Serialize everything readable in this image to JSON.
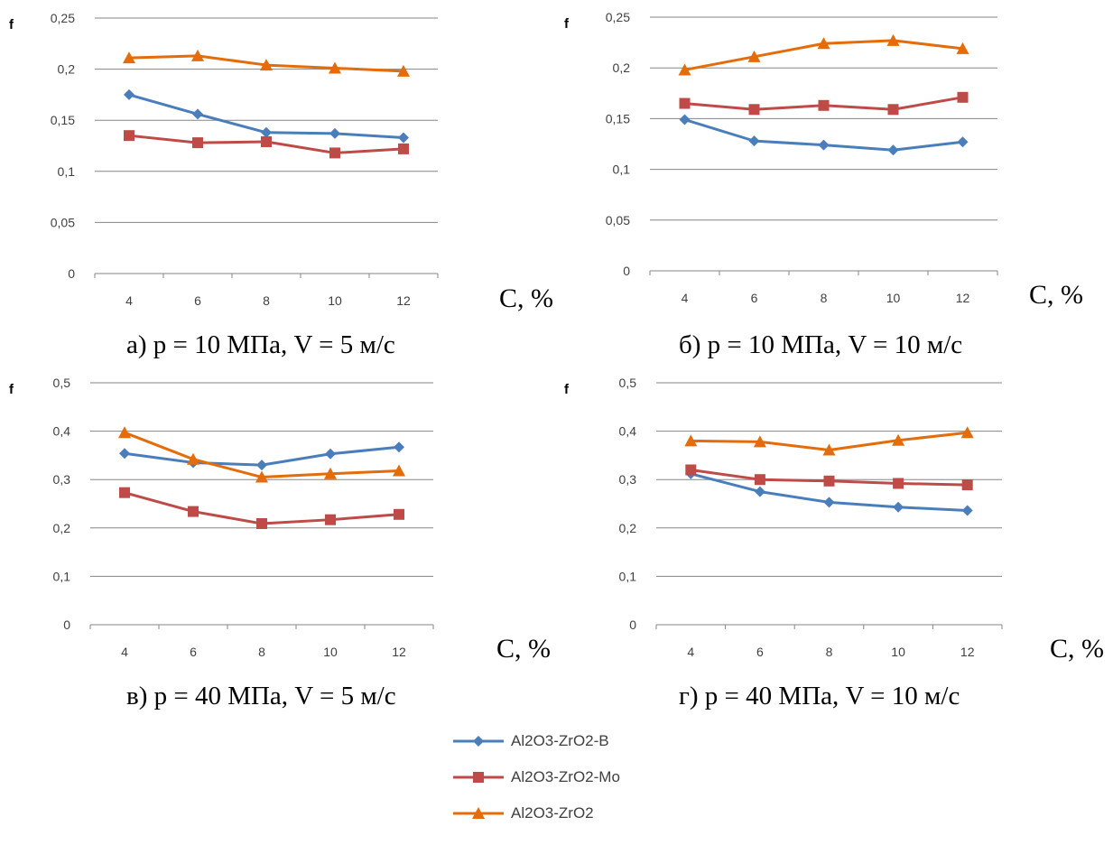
{
  "series_styles": [
    {
      "color": "#4a7ebb",
      "marker": "diamond"
    },
    {
      "color": "#be4b48",
      "marker": "square"
    },
    {
      "color": "#e46c0a",
      "marker": "triangle"
    }
  ],
  "legend": {
    "items": [
      "Al2O3-ZrO2-B",
      "Al2O3-ZrO2-Mo",
      "Al2O3-ZrO2"
    ]
  },
  "chart_data": [
    {
      "type": "line",
      "title": "а) p = 10 МПа, V = 5 м/с",
      "ylabel": "f",
      "xlabel": "C, %",
      "categories": [
        "4",
        "6",
        "8",
        "10",
        "12"
      ],
      "yticks": [
        "0",
        "0,05",
        "0,1",
        "0,15",
        "0,2",
        "0,25"
      ],
      "ylim": [
        0,
        0.25
      ],
      "grid": true,
      "series": [
        {
          "name": "Al2O3-ZrO2-B",
          "values": [
            0.175,
            0.156,
            0.138,
            0.137,
            0.133
          ]
        },
        {
          "name": "Al2O3-ZrO2-Mo",
          "values": [
            0.135,
            0.128,
            0.129,
            0.118,
            0.122
          ]
        },
        {
          "name": "Al2O3-ZrO2",
          "values": [
            0.211,
            0.213,
            0.204,
            0.201,
            0.198
          ]
        }
      ]
    },
    {
      "type": "line",
      "title": "б) p = 10 МПа, V = 10 м/с",
      "ylabel": "f",
      "xlabel": "C, %",
      "categories": [
        "4",
        "6",
        "8",
        "10",
        "12"
      ],
      "yticks": [
        "0",
        "0,05",
        "0,1",
        "0,15",
        "0,2",
        "0,25"
      ],
      "ylim": [
        0,
        0.25
      ],
      "grid": true,
      "series": [
        {
          "name": "Al2O3-ZrO2-B",
          "values": [
            0.149,
            0.128,
            0.124,
            0.119,
            0.127
          ]
        },
        {
          "name": "Al2O3-ZrO2-Mo",
          "values": [
            0.165,
            0.159,
            0.163,
            0.159,
            0.171
          ]
        },
        {
          "name": "Al2O3-ZrO2",
          "values": [
            0.198,
            0.211,
            0.224,
            0.227,
            0.219
          ]
        }
      ]
    },
    {
      "type": "line",
      "title": "в) p = 40 МПа, V = 5 м/с",
      "ylabel": "f",
      "xlabel": "C, %",
      "categories": [
        "4",
        "6",
        "8",
        "10",
        "12"
      ],
      "yticks": [
        "0",
        "0,1",
        "0,2",
        "0,3",
        "0,4",
        "0,5"
      ],
      "ylim": [
        0,
        0.5
      ],
      "grid": true,
      "series": [
        {
          "name": "Al2O3-ZrO2-B",
          "values": [
            0.354,
            0.335,
            0.33,
            0.353,
            0.367
          ]
        },
        {
          "name": "Al2O3-ZrO2-Mo",
          "values": [
            0.273,
            0.234,
            0.209,
            0.217,
            0.228
          ]
        },
        {
          "name": "Al2O3-ZrO2",
          "values": [
            0.397,
            0.342,
            0.305,
            0.312,
            0.318
          ]
        }
      ]
    },
    {
      "type": "line",
      "title": "г) p = 40 МПа, V = 10 м/с",
      "ylabel": "f",
      "xlabel": "C, %",
      "categories": [
        "4",
        "6",
        "8",
        "10",
        "12"
      ],
      "yticks": [
        "0",
        "0,1",
        "0,2",
        "0,3",
        "0,4",
        "0,5"
      ],
      "ylim": [
        0,
        0.5
      ],
      "grid": true,
      "series": [
        {
          "name": "Al2O3-ZrO2-B",
          "values": [
            0.312,
            0.275,
            0.253,
            0.243,
            0.236
          ]
        },
        {
          "name": "Al2O3-ZrO2-Mo",
          "values": [
            0.32,
            0.3,
            0.297,
            0.292,
            0.289
          ]
        },
        {
          "name": "Al2O3-ZrO2",
          "values": [
            0.38,
            0.378,
            0.361,
            0.381,
            0.397
          ]
        }
      ]
    }
  ]
}
